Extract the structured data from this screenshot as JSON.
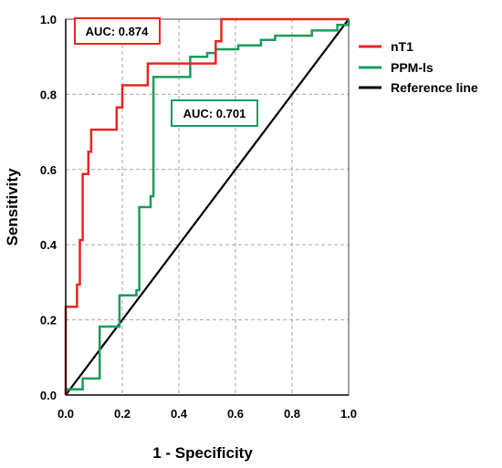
{
  "chart_data": {
    "type": "line",
    "xlabel": "1 - Specificity",
    "ylabel": "Sensitivity",
    "xlim": [
      0,
      1
    ],
    "ylim": [
      0,
      1
    ],
    "x_ticks": [
      "0.0",
      "0.2",
      "0.4",
      "0.6",
      "0.8",
      "1.0"
    ],
    "y_ticks": [
      "0.0",
      "0.2",
      "0.4",
      "0.6",
      "0.8",
      "1.0"
    ],
    "grid": true,
    "legend_position": "top-right",
    "series": [
      {
        "name": "nT1",
        "color": "#e8251f",
        "auc_label": "AUC: 0.874",
        "points": [
          [
            0.0,
            0.0
          ],
          [
            0.0,
            0.235
          ],
          [
            0.04,
            0.235
          ],
          [
            0.04,
            0.294
          ],
          [
            0.05,
            0.294
          ],
          [
            0.05,
            0.412
          ],
          [
            0.06,
            0.412
          ],
          [
            0.06,
            0.588
          ],
          [
            0.08,
            0.588
          ],
          [
            0.08,
            0.647
          ],
          [
            0.09,
            0.647
          ],
          [
            0.09,
            0.706
          ],
          [
            0.18,
            0.706
          ],
          [
            0.18,
            0.765
          ],
          [
            0.2,
            0.765
          ],
          [
            0.2,
            0.824
          ],
          [
            0.29,
            0.824
          ],
          [
            0.29,
            0.882
          ],
          [
            0.53,
            0.882
          ],
          [
            0.53,
            0.941
          ],
          [
            0.55,
            0.941
          ],
          [
            0.55,
            1.0
          ],
          [
            1.0,
            1.0
          ]
        ]
      },
      {
        "name": "PPM-ls",
        "color": "#1a9b5c",
        "auc_label": "AUC: 0.701",
        "points": [
          [
            0.0,
            0.0
          ],
          [
            0.0,
            0.015
          ],
          [
            0.06,
            0.015
          ],
          [
            0.06,
            0.044
          ],
          [
            0.12,
            0.044
          ],
          [
            0.12,
            0.182
          ],
          [
            0.19,
            0.182
          ],
          [
            0.19,
            0.265
          ],
          [
            0.25,
            0.265
          ],
          [
            0.25,
            0.279
          ],
          [
            0.26,
            0.279
          ],
          [
            0.26,
            0.5
          ],
          [
            0.3,
            0.5
          ],
          [
            0.3,
            0.529
          ],
          [
            0.31,
            0.529
          ],
          [
            0.31,
            0.846
          ],
          [
            0.44,
            0.846
          ],
          [
            0.44,
            0.9
          ],
          [
            0.5,
            0.9
          ],
          [
            0.5,
            0.91
          ],
          [
            0.53,
            0.91
          ],
          [
            0.53,
            0.92
          ],
          [
            0.61,
            0.92
          ],
          [
            0.61,
            0.93
          ],
          [
            0.69,
            0.93
          ],
          [
            0.69,
            0.945
          ],
          [
            0.74,
            0.945
          ],
          [
            0.74,
            0.956
          ],
          [
            0.87,
            0.956
          ],
          [
            0.87,
            0.97
          ],
          [
            0.96,
            0.97
          ],
          [
            0.96,
            0.985
          ],
          [
            1.0,
            0.985
          ],
          [
            1.0,
            1.0
          ]
        ]
      },
      {
        "name": "Reference line",
        "color": "#000000",
        "points": [
          [
            0.0,
            0.0
          ],
          [
            1.0,
            1.0
          ]
        ]
      }
    ]
  }
}
